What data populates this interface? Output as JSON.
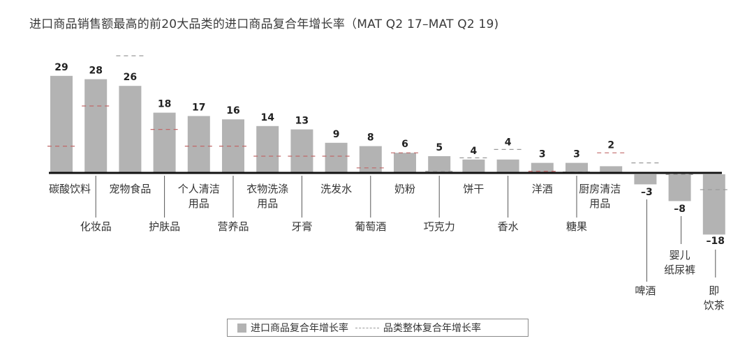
{
  "title": "进口商品销售额最高的前20大品类的进口商品复合年增长率（MAT Q2 17–MAT Q2 19)",
  "legend": {
    "bar_label": "进口商品复合年增长率",
    "line_label": "品类整体复合年增长率"
  },
  "colors": {
    "bar": "#b3b3b3",
    "axis": "#111111",
    "dash": "#c06868",
    "dash_grey": "#9a9a9a",
    "label": "#222222"
  },
  "chart_data": {
    "type": "bar",
    "title": "进口商品销售额最高的前20大品类的进口商品复合年增长率（MAT Q2 17–MAT Q2 19)",
    "xlabel": "",
    "ylabel": "",
    "grid": false,
    "legend_position": "bottom",
    "categories": [
      "碳酸饮料",
      "化妆品",
      "宠物食品",
      "护肤品",
      "个人清洁用品",
      "营养品",
      "衣物洗涤用品",
      "牙膏",
      "洗发水",
      "葡萄酒",
      "奶粉",
      "巧克力",
      "饼干",
      "香水",
      "洋酒",
      "糖果",
      "厨房清洁用品",
      "啤酒",
      "婴儿纸尿裤",
      "即饮茶"
    ],
    "series": [
      {
        "name": "进口商品复合年增长率",
        "type": "bar",
        "values": [
          29,
          28,
          26,
          18,
          17,
          16,
          14,
          13,
          9,
          8,
          6,
          5,
          4,
          4,
          3,
          3,
          2,
          -3,
          -8,
          -18
        ]
      },
      {
        "name": "品类整体复合年增长率",
        "type": "dashed-marker",
        "values": [
          8,
          20,
          35,
          13,
          8,
          8,
          5,
          5,
          5,
          1.5,
          6,
          0.5,
          4.5,
          7,
          0.5,
          0.3,
          6,
          3,
          -0.5,
          -5
        ]
      }
    ],
    "label_rows": [
      0,
      1,
      0,
      1,
      0,
      1,
      0,
      1,
      0,
      1,
      0,
      1,
      0,
      1,
      0,
      1,
      0,
      2,
      2,
      2
    ],
    "display_labels": [
      "29",
      "28",
      "26",
      "18",
      "17",
      "16",
      "14",
      "13",
      "9",
      "8",
      "6",
      "5",
      "4",
      "4",
      "3",
      "3",
      "2",
      "–3",
      "–8",
      "–18"
    ],
    "ylim": [
      -20,
      36
    ]
  }
}
